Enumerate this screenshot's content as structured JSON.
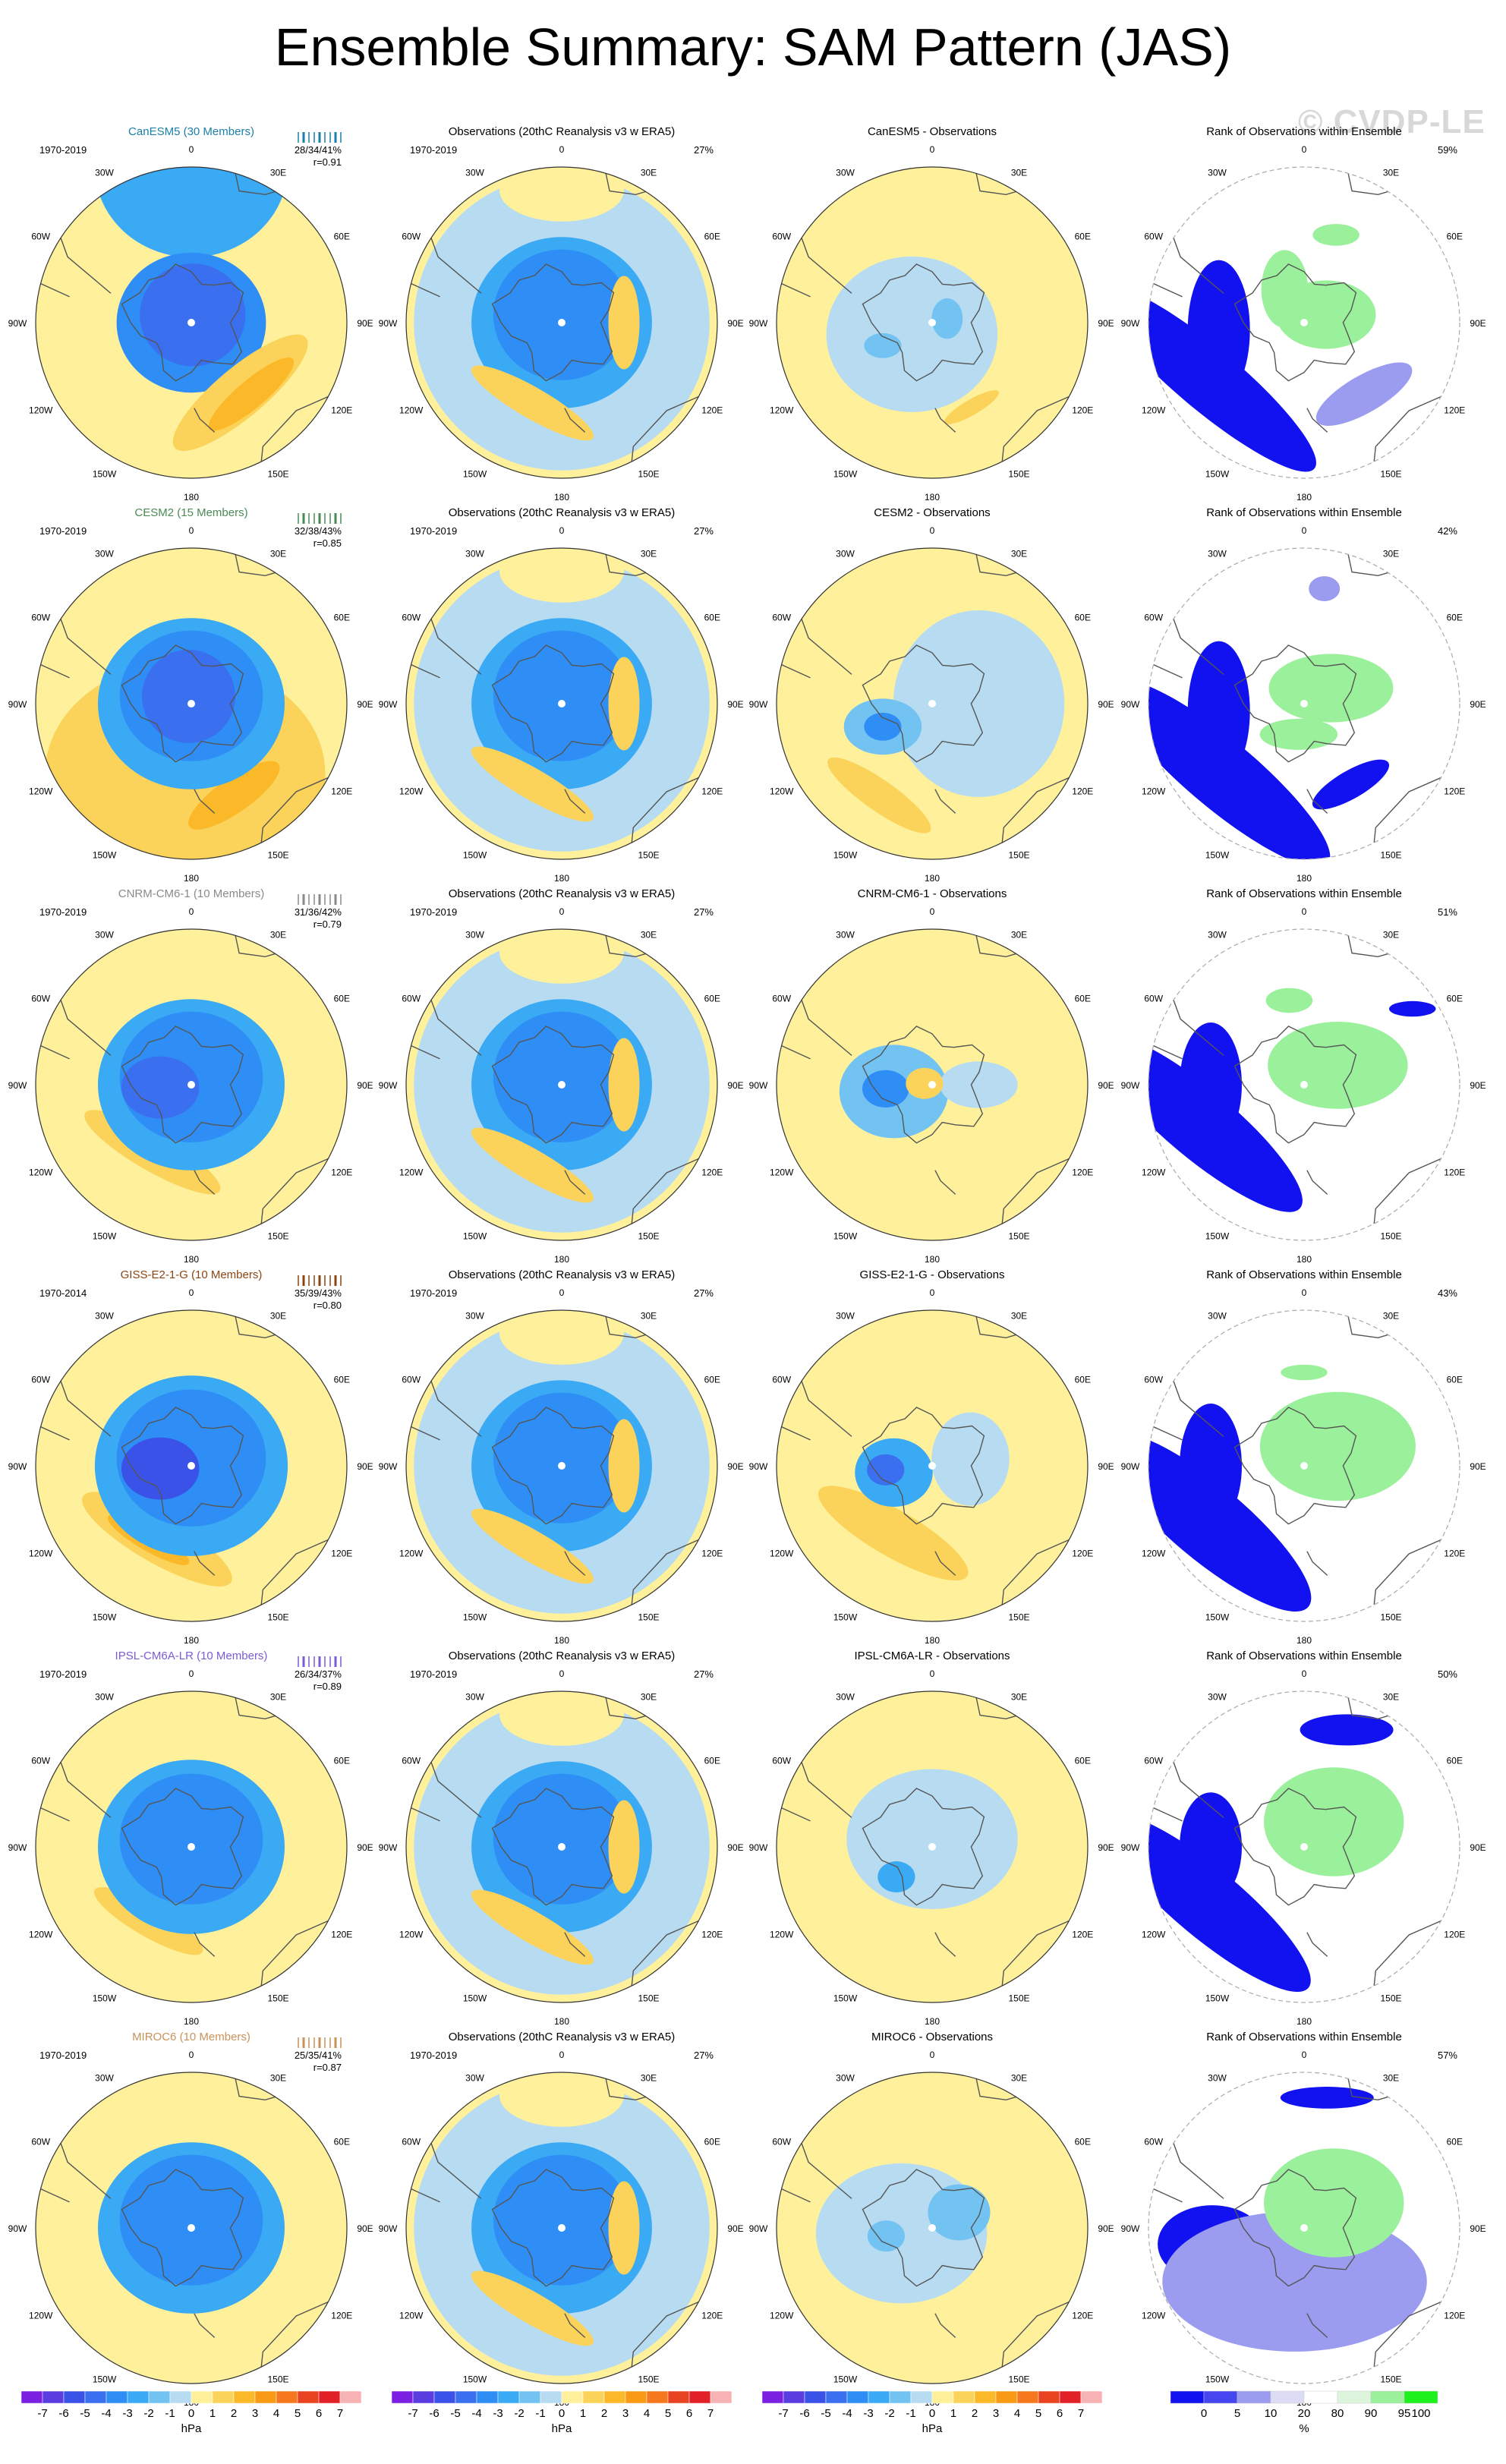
{
  "title": "Ensemble Summary: SAM Pattern (JAS)",
  "watermark": "© CVDP-LE",
  "lon_labels": {
    "0": "0",
    "30W": "30W",
    "30E": "30E",
    "60W": "60W",
    "60E": "60E",
    "90W": "90W",
    "90E": "90E",
    "120W": "120W",
    "120E": "120E",
    "150W": "150W",
    "150E": "150E",
    "180": "180"
  },
  "obs_title": "Observations (20thC Reanalysis v3 w ERA5)",
  "obs_period": "1970-2019",
  "obs_pct": "27%",
  "rank_title": "Rank of Observations within Ensemble",
  "rows": [
    {
      "model_title": "CanESM5 (30 Members)",
      "color": "#1b7fa8",
      "period": "1970-2019",
      "stats": "28/34/41%",
      "r": "r=0.91",
      "diff_title": "CanESM5 - Observations",
      "rank_pct": "59%",
      "model_blobs": [
        {
          "lon": 0,
          "colat": 1.0,
          "rx": 0.62,
          "ry": 0.58,
          "rot": 0,
          "level": "-3"
        },
        {
          "lon": 0,
          "colat": 0.0,
          "rx": 0.48,
          "ry": 0.45,
          "rot": 0,
          "level": "-4"
        },
        {
          "lon": 10,
          "colat": 0.05,
          "rx": 0.34,
          "ry": 0.33,
          "rot": 0,
          "level": "-5"
        },
        {
          "lon": 145,
          "colat": 0.55,
          "rx": 0.55,
          "ry": 0.16,
          "rot": -40,
          "level": "1"
        },
        {
          "lon": 140,
          "colat": 0.6,
          "rx": 0.35,
          "ry": 0.09,
          "rot": -40,
          "level": "2"
        }
      ],
      "diff_blobs": [
        {
          "lon": -120,
          "colat": 0.15,
          "rx": 0.55,
          "ry": 0.5,
          "rot": 0,
          "level": "-1"
        },
        {
          "lon": -115,
          "colat": 0.35,
          "rx": 0.12,
          "ry": 0.08,
          "rot": 0,
          "level": "-2"
        },
        {
          "lon": 75,
          "colat": 0.1,
          "rx": 0.1,
          "ry": 0.13,
          "rot": 0,
          "level": "-2"
        },
        {
          "lon": 155,
          "colat": 0.6,
          "rx": 0.2,
          "ry": 0.05,
          "rot": -30,
          "level": "1"
        }
      ],
      "rank_blobs": [
        {
          "lon": -120,
          "colat": 0.72,
          "rx": 0.9,
          "ry": 0.2,
          "rot": 40,
          "level": "0"
        },
        {
          "lon": -95,
          "colat": 0.55,
          "rx": 0.2,
          "ry": 0.45,
          "rot": 0,
          "level": "0"
        },
        {
          "lon": 140,
          "colat": 0.6,
          "rx": 0.35,
          "ry": 0.12,
          "rot": -30,
          "level": "10"
        },
        {
          "lon": -30,
          "colat": 0.25,
          "rx": 0.15,
          "ry": 0.25,
          "rot": 0,
          "level": "95"
        },
        {
          "lon": 70,
          "colat": 0.15,
          "rx": 0.32,
          "ry": 0.22,
          "rot": 0,
          "level": "95"
        },
        {
          "lon": 20,
          "colat": 0.6,
          "rx": 0.15,
          "ry": 0.07,
          "rot": 0,
          "level": "95"
        }
      ]
    },
    {
      "model_title": "CESM2 (15 Members)",
      "color": "#4a8a55",
      "period": "1970-2019",
      "stats": "32/38/43%",
      "r": "r=0.85",
      "diff_title": "CESM2 - Observations",
      "rank_pct": "42%",
      "model_blobs": [
        {
          "lon": -175,
          "colat": 0.45,
          "rx": 0.9,
          "ry": 0.72,
          "rot": 0,
          "level": "1"
        },
        {
          "lon": 155,
          "colat": 0.65,
          "rx": 0.35,
          "ry": 0.11,
          "rot": -35,
          "level": "2"
        },
        {
          "lon": 0,
          "colat": 0.0,
          "rx": 0.6,
          "ry": 0.55,
          "rot": 0,
          "level": "-3"
        },
        {
          "lon": 0,
          "colat": 0.05,
          "rx": 0.46,
          "ry": 0.42,
          "rot": 0,
          "level": "-4"
        },
        {
          "lon": -20,
          "colat": 0.05,
          "rx": 0.3,
          "ry": 0.3,
          "rot": 0,
          "level": "-5"
        }
      ],
      "diff_blobs": [
        {
          "lon": 90,
          "colat": 0.3,
          "rx": 0.55,
          "ry": 0.6,
          "rot": 0,
          "level": "-1"
        },
        {
          "lon": -115,
          "colat": 0.35,
          "rx": 0.25,
          "ry": 0.18,
          "rot": 0,
          "level": "-2"
        },
        {
          "lon": -115,
          "colat": 0.35,
          "rx": 0.12,
          "ry": 0.09,
          "rot": 0,
          "level": "-4"
        },
        {
          "lon": -150,
          "colat": 0.68,
          "rx": 0.4,
          "ry": 0.1,
          "rot": 35,
          "level": "1"
        }
      ],
      "rank_blobs": [
        {
          "lon": -130,
          "colat": 0.7,
          "rx": 0.9,
          "ry": 0.22,
          "rot": 40,
          "level": "0"
        },
        {
          "lon": -95,
          "colat": 0.55,
          "rx": 0.2,
          "ry": 0.45,
          "rot": 0,
          "level": "0"
        },
        {
          "lon": 150,
          "colat": 0.6,
          "rx": 0.28,
          "ry": 0.09,
          "rot": -30,
          "level": "0"
        },
        {
          "lon": 60,
          "colat": 0.2,
          "rx": 0.4,
          "ry": 0.22,
          "rot": 0,
          "level": "95"
        },
        {
          "lon": -170,
          "colat": 0.2,
          "rx": 0.25,
          "ry": 0.1,
          "rot": 0,
          "level": "95"
        },
        {
          "lon": 10,
          "colat": 0.75,
          "rx": 0.1,
          "ry": 0.08,
          "rot": 0,
          "level": "10"
        }
      ]
    },
    {
      "model_title": "CNRM-CM6-1 (10 Members)",
      "color": "#8a8a8a",
      "period": "1970-2019",
      "stats": "31/36/42%",
      "r": "r=0.79",
      "diff_title": "CNRM-CM6-1 - Observations",
      "rank_pct": "51%",
      "model_blobs": [
        {
          "lon": -150,
          "colat": 0.5,
          "rx": 0.5,
          "ry": 0.12,
          "rot": 30,
          "level": "1"
        },
        {
          "lon": 95,
          "colat": 0.35,
          "rx": 0.1,
          "ry": 0.28,
          "rot": 0,
          "level": "1"
        },
        {
          "lon": 0,
          "colat": 0.0,
          "rx": 0.6,
          "ry": 0.55,
          "rot": 0,
          "level": "-3"
        },
        {
          "lon": 0,
          "colat": 0.05,
          "rx": 0.46,
          "ry": 0.42,
          "rot": 0,
          "level": "-4"
        },
        {
          "lon": -95,
          "colat": 0.2,
          "rx": 0.25,
          "ry": 0.2,
          "rot": 0,
          "level": "-5"
        }
      ],
      "diff_blobs": [
        {
          "lon": -100,
          "colat": 0.25,
          "rx": 0.35,
          "ry": 0.3,
          "rot": 0,
          "level": "-2"
        },
        {
          "lon": -95,
          "colat": 0.3,
          "rx": 0.15,
          "ry": 0.12,
          "rot": 0,
          "level": "-4"
        },
        {
          "lon": 90,
          "colat": 0.3,
          "rx": 0.25,
          "ry": 0.15,
          "rot": 0,
          "level": "-1"
        },
        {
          "lon": -80,
          "colat": 0.05,
          "rx": 0.12,
          "ry": 0.1,
          "rot": 0,
          "level": "1"
        }
      ],
      "rank_blobs": [
        {
          "lon": -110,
          "colat": 0.72,
          "rx": 0.85,
          "ry": 0.22,
          "rot": 40,
          "level": "0"
        },
        {
          "lon": -90,
          "colat": 0.6,
          "rx": 0.2,
          "ry": 0.4,
          "rot": 0,
          "level": "0"
        },
        {
          "lon": 55,
          "colat": 0.85,
          "rx": 0.15,
          "ry": 0.05,
          "rot": 0,
          "level": "0"
        },
        {
          "lon": 60,
          "colat": 0.25,
          "rx": 0.45,
          "ry": 0.28,
          "rot": 0,
          "level": "95"
        },
        {
          "lon": -10,
          "colat": 0.55,
          "rx": 0.15,
          "ry": 0.08,
          "rot": 0,
          "level": "95"
        }
      ]
    },
    {
      "model_title": "GISS-E2-1-G (10 Members)",
      "color": "#8b4513",
      "period": "1970-2014",
      "stats": "35/39/43%",
      "r": "r=0.80",
      "diff_title": "GISS-E2-1-G - Observations",
      "rank_pct": "43%",
      "model_blobs": [
        {
          "lon": -155,
          "colat": 0.52,
          "rx": 0.55,
          "ry": 0.15,
          "rot": 30,
          "level": "1"
        },
        {
          "lon": -150,
          "colat": 0.55,
          "rx": 0.3,
          "ry": 0.07,
          "rot": 30,
          "level": "2"
        },
        {
          "lon": 0,
          "colat": 0.0,
          "rx": 0.62,
          "ry": 0.58,
          "rot": 0,
          "level": "-3"
        },
        {
          "lon": 0,
          "colat": 0.05,
          "rx": 0.48,
          "ry": 0.44,
          "rot": 0,
          "level": "-4"
        },
        {
          "lon": -95,
          "colat": 0.2,
          "rx": 0.25,
          "ry": 0.2,
          "rot": 0,
          "level": "-6"
        }
      ],
      "diff_blobs": [
        {
          "lon": -150,
          "colat": 0.5,
          "rx": 0.55,
          "ry": 0.15,
          "rot": 30,
          "level": "1"
        },
        {
          "lon": -100,
          "colat": 0.25,
          "rx": 0.25,
          "ry": 0.22,
          "rot": 0,
          "level": "-3"
        },
        {
          "lon": -95,
          "colat": 0.3,
          "rx": 0.12,
          "ry": 0.1,
          "rot": 0,
          "level": "-5"
        },
        {
          "lon": 80,
          "colat": 0.25,
          "rx": 0.25,
          "ry": 0.3,
          "rot": 0,
          "level": "-1"
        }
      ],
      "rank_blobs": [
        {
          "lon": -120,
          "colat": 0.72,
          "rx": 0.85,
          "ry": 0.24,
          "rot": 40,
          "level": "0"
        },
        {
          "lon": -90,
          "colat": 0.6,
          "rx": 0.2,
          "ry": 0.4,
          "rot": 0,
          "level": "0"
        },
        {
          "lon": 60,
          "colat": 0.25,
          "rx": 0.5,
          "ry": 0.35,
          "rot": 0,
          "level": "95"
        },
        {
          "lon": 0,
          "colat": 0.6,
          "rx": 0.15,
          "ry": 0.05,
          "rot": 0,
          "level": "95"
        }
      ]
    },
    {
      "model_title": "IPSL-CM6A-LR (10 Members)",
      "color": "#7b5bd6",
      "period": "1970-2019",
      "stats": "26/34/37%",
      "r": "r=0.89",
      "diff_title": "IPSL-CM6A-LR - Observations",
      "rank_pct": "50%",
      "model_blobs": [
        {
          "lon": 95,
          "colat": 0.35,
          "rx": 0.1,
          "ry": 0.25,
          "rot": 0,
          "level": "1"
        },
        {
          "lon": -150,
          "colat": 0.55,
          "rx": 0.4,
          "ry": 0.1,
          "rot": 30,
          "level": "1"
        },
        {
          "lon": 0,
          "colat": 0.0,
          "rx": 0.6,
          "ry": 0.56,
          "rot": 0,
          "level": "-3"
        },
        {
          "lon": 0,
          "colat": 0.05,
          "rx": 0.46,
          "ry": 0.42,
          "rot": 0,
          "level": "-4"
        }
      ],
      "diff_blobs": [
        {
          "lon": 0,
          "colat": 0.05,
          "rx": 0.55,
          "ry": 0.45,
          "rot": 0,
          "level": "-1"
        },
        {
          "lon": -130,
          "colat": 0.3,
          "rx": 0.12,
          "ry": 0.1,
          "rot": 0,
          "level": "-3"
        }
      ],
      "rank_blobs": [
        {
          "lon": -120,
          "colat": 0.72,
          "rx": 0.85,
          "ry": 0.22,
          "rot": 40,
          "level": "0"
        },
        {
          "lon": -90,
          "colat": 0.6,
          "rx": 0.2,
          "ry": 0.35,
          "rot": 0,
          "level": "0"
        },
        {
          "lon": 20,
          "colat": 0.8,
          "rx": 0.3,
          "ry": 0.1,
          "rot": 0,
          "level": "0"
        },
        {
          "lon": 50,
          "colat": 0.25,
          "rx": 0.45,
          "ry": 0.35,
          "rot": 0,
          "level": "95"
        }
      ]
    },
    {
      "model_title": "MIROC6 (10 Members)",
      "color": "#c9925a",
      "period": "1970-2019",
      "stats": "25/35/41%",
      "r": "r=0.87",
      "diff_title": "MIROC6 - Observations",
      "rank_pct": "57%",
      "model_blobs": [
        {
          "lon": 95,
          "colat": 0.35,
          "rx": 0.1,
          "ry": 0.25,
          "rot": 0,
          "level": "1"
        },
        {
          "lon": 0,
          "colat": 0.0,
          "rx": 0.6,
          "ry": 0.55,
          "rot": 0,
          "level": "-3"
        },
        {
          "lon": 0,
          "colat": 0.05,
          "rx": 0.46,
          "ry": 0.42,
          "rot": 0,
          "level": "-4"
        }
      ],
      "diff_blobs": [
        {
          "lon": -100,
          "colat": 0.2,
          "rx": 0.55,
          "ry": 0.45,
          "rot": 0,
          "level": "-1"
        },
        {
          "lon": -100,
          "colat": 0.3,
          "rx": 0.12,
          "ry": 0.1,
          "rot": 0,
          "level": "-2"
        },
        {
          "lon": 60,
          "colat": 0.2,
          "rx": 0.2,
          "ry": 0.18,
          "rot": 0,
          "level": "-2"
        }
      ],
      "rank_blobs": [
        {
          "lon": -100,
          "colat": 0.6,
          "rx": 0.35,
          "ry": 0.25,
          "rot": 0,
          "level": "0"
        },
        {
          "lon": 10,
          "colat": 0.85,
          "rx": 0.3,
          "ry": 0.07,
          "rot": 0,
          "level": "0"
        },
        {
          "lon": -170,
          "colat": 0.35,
          "rx": 0.85,
          "ry": 0.45,
          "rot": 0,
          "level": "10"
        },
        {
          "lon": 50,
          "colat": 0.25,
          "rx": 0.45,
          "ry": 0.35,
          "rot": 0,
          "level": "95"
        }
      ]
    }
  ],
  "scale": {
    "levels": [
      "-7",
      "-6",
      "-5",
      "-4",
      "-3",
      "-2",
      "-1",
      "0",
      "1",
      "2",
      "3",
      "4",
      "5",
      "6",
      "7"
    ],
    "colors": [
      "#7b20e0",
      "#5a3de0",
      "#3a52e8",
      "#3a6ff0",
      "#2f8ef5",
      "#3aaaf5",
      "#73c3f2",
      "#b7dcf2",
      "#fff19c",
      "#fbd35a",
      "#fbb828",
      "#f89a14",
      "#f5781e",
      "#e84421",
      "#e12027",
      "#f7b3b3"
    ],
    "unit": "hPa"
  },
  "rank_scale": {
    "levels": [
      "0",
      "5",
      "10",
      "20",
      "80",
      "90",
      "95",
      "100"
    ],
    "tick_labels": [
      "0",
      "5",
      "10",
      "20",
      "80",
      "90",
      "95",
      "100"
    ],
    "colors": [
      "#1212f0",
      "#4646f0",
      "#9b9bf0",
      "#dcdcf5",
      "#ffffff",
      "#dcf5dc",
      "#9bf09b",
      "#1ef01e"
    ],
    "unit": "%"
  }
}
